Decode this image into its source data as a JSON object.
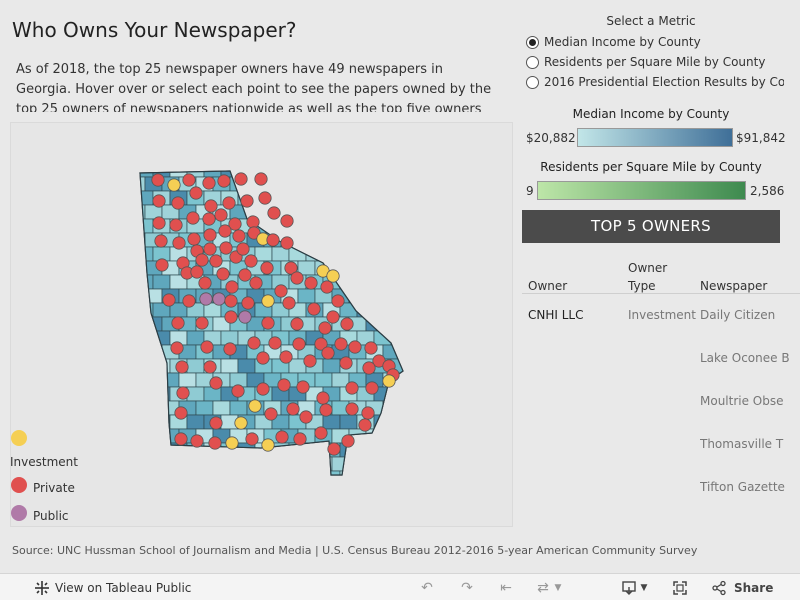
{
  "title": "Who Owns Your Newspaper?",
  "description": "As of 2018, the top 25 newspaper owners have 49 newspapers in Georgia. Hover over or select each point to see the papers owned by the top 25 owners of newspapers nationwide as well as the top five owners of newspapers in the",
  "legend": {
    "items": [
      {
        "label": "Investment",
        "color": "#f5cf54"
      },
      {
        "label": "Private",
        "color": "#e0504f"
      },
      {
        "label": "Public",
        "color": "#b07aa8"
      }
    ]
  },
  "metric_selector": {
    "title": "Select a Metric",
    "options": [
      {
        "label": "Median Income by County",
        "selected": true
      },
      {
        "label": "Residents per Square Mile by County",
        "selected": false
      },
      {
        "label": "2016 Presidential Election Results by Co...",
        "selected": false
      }
    ]
  },
  "income_scale": {
    "title": "Median Income by County",
    "min": "$20,882",
    "max": "$91,842",
    "color_low": "#c2e6e8",
    "color_high": "#3f6f98"
  },
  "density_scale": {
    "title": "Residents per Square Mile by County",
    "min": "9",
    "max": "2,586",
    "color_low": "#bde6a8",
    "color_high": "#3e8a4f"
  },
  "top5": {
    "title": "TOP 5 OWNERS",
    "headers": {
      "owner": "Owner",
      "owner_type": "Owner Type",
      "newspaper": "Newspaper"
    },
    "rows": [
      {
        "owner": "CNHI LLC",
        "owner_type": "Investment",
        "papers": [
          "Daily Citizen",
          "Lake Oconee B",
          "Moultrie Obse",
          "Thomasville T",
          "Tifton Gazette"
        ]
      }
    ]
  },
  "source": "Source: UNC Hussman School of Journalism and Media  |  U.S. Census Bureau 2012-2016 5-year American Community Survey",
  "toolbar": {
    "view_label": "View on Tableau Public",
    "share_label": "Share"
  }
}
